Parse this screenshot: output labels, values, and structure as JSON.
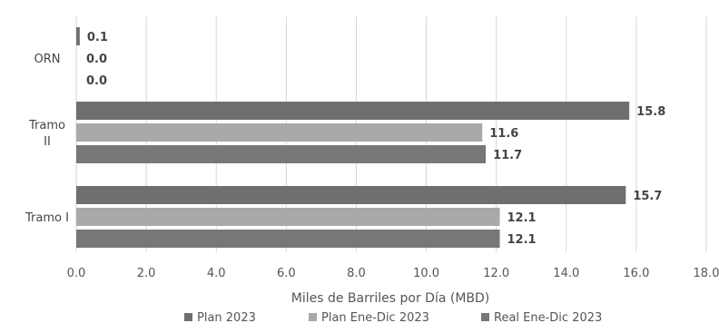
{
  "chart_data": {
    "type": "bar",
    "orientation": "horizontal",
    "title": "",
    "xlabel": "Miles de Barriles por Día (MBD)",
    "ylabel": "",
    "xlim": [
      0,
      18
    ],
    "xticks": [
      "0.0",
      "2.0",
      "4.0",
      "6.0",
      "8.0",
      "10.0",
      "12.0",
      "14.0",
      "16.0",
      "18.0"
    ],
    "grid": true,
    "legend_position": "bottom",
    "categories": [
      {
        "lines": [
          "ORN"
        ]
      },
      {
        "lines": [
          "Tramo",
          "II"
        ]
      },
      {
        "lines": [
          "Tramo I"
        ]
      }
    ],
    "series": [
      {
        "name": "Plan 2023",
        "color": "#6f6f6f",
        "values": [
          0.1,
          15.8,
          15.7
        ],
        "labels": [
          "0.1",
          "15.8",
          "15.7"
        ]
      },
      {
        "name": "Plan Ene-Dic 2023",
        "color": "#a9a9a9",
        "values": [
          0.0,
          11.6,
          12.1
        ],
        "labels": [
          "0.0",
          "11.6",
          "12.1"
        ]
      },
      {
        "name": "Real Ene-Dic 2023",
        "color": "#777777",
        "values": [
          0.0,
          11.7,
          12.1
        ],
        "labels": [
          "0.0",
          "11.7",
          "12.1"
        ]
      }
    ]
  }
}
